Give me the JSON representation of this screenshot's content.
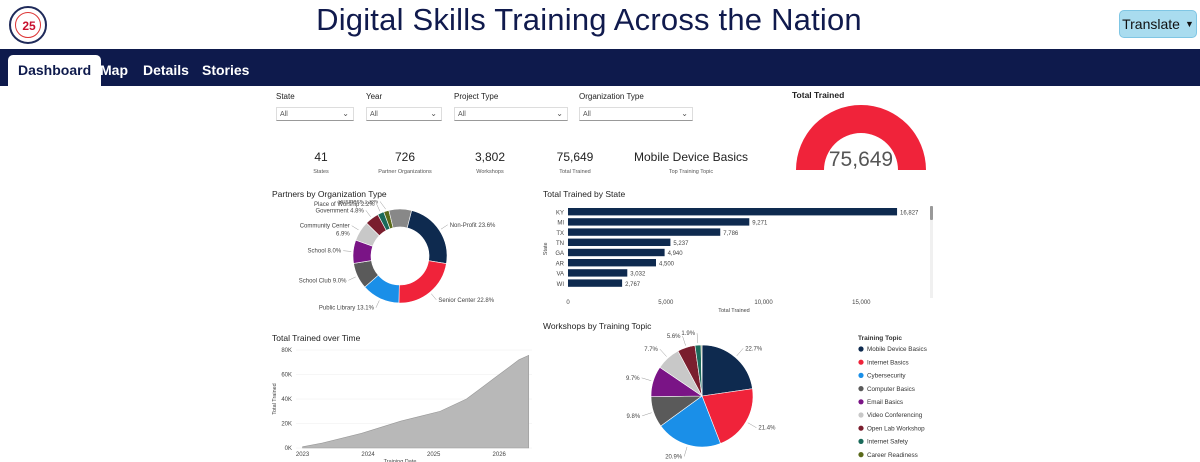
{
  "header": {
    "title": "Digital Skills Training Across the Nation",
    "logo_text": "25",
    "translate_label": "Translate"
  },
  "nav": {
    "tabs": [
      {
        "label": "Dashboard",
        "active": true
      },
      {
        "label": "Map"
      },
      {
        "label": "Details"
      },
      {
        "label": "Stories"
      }
    ]
  },
  "filters": [
    {
      "label": "State",
      "value": "All"
    },
    {
      "label": "Year",
      "value": "All"
    },
    {
      "label": "Project Type",
      "value": "All"
    },
    {
      "label": "Organization Type",
      "value": "All"
    }
  ],
  "kpis": [
    {
      "value": "41",
      "label": "States"
    },
    {
      "value": "726",
      "label": "Partner Organizations"
    },
    {
      "value": "3,802",
      "label": "Workshops"
    },
    {
      "value": "75,649",
      "label": "Total Trained"
    },
    {
      "value": "Mobile Device Basics",
      "label": "Top Training Topic"
    }
  ],
  "gauge": {
    "title": "Total Trained",
    "value_text": "75,649",
    "fraction": 1.0,
    "color": "#f0233a"
  },
  "chart_data": [
    {
      "type": "pie",
      "title": "Partners by Organization Type",
      "categories": [
        "Non-Profit",
        "Senior Center",
        "Public Library",
        "School Club",
        "School",
        "Community Center",
        "Government",
        "Place of Worship",
        "Business",
        "Other"
      ],
      "values": [
        23.6,
        22.8,
        13.1,
        9.0,
        8.0,
        6.9,
        4.8,
        2.2,
        1.8,
        7.8
      ],
      "labels": [
        "Non-Profit 23.6%",
        "Senior Center 22.8%",
        "Public Library 13.1%",
        "School Club 9.0%",
        "School 8.0%",
        "Community Center",
        "Government 4.8%",
        "Place of Worship 2.2%",
        "Business 1.8%",
        ""
      ],
      "extra_label": "6.9%",
      "colors": [
        "#0e2a4f",
        "#f0233a",
        "#1a8fe8",
        "#5a5a5a",
        "#7a1486",
        "#c8c8c8",
        "#7a1e2e",
        "#1a6a5a",
        "#5a6a1a",
        "#888888"
      ]
    },
    {
      "type": "bar",
      "title": "Total Trained by State",
      "categories": [
        "KY",
        "MI",
        "TX",
        "TN",
        "GA",
        "AR",
        "VA",
        "WI"
      ],
      "values": [
        16827,
        9271,
        7786,
        5237,
        4940,
        4500,
        3032,
        2767
      ],
      "value_labels": [
        "16,827",
        "9,271",
        "7,786",
        "5,237",
        "4,940",
        "4,500",
        "3,032",
        "2,767"
      ],
      "xlabel": "Total Trained",
      "ylabel": "State",
      "xticks": [
        "0",
        "5,000",
        "10,000",
        "15,000"
      ],
      "xlim": [
        0,
        18000
      ],
      "color": "#0e2a4f"
    },
    {
      "type": "area",
      "title": "Total Trained over Time",
      "xlabel": "Training Date",
      "ylabel": "Total Trained",
      "xticks": [
        "2023",
        "2024",
        "2025",
        "2026"
      ],
      "yticks": [
        "0K",
        "20K",
        "40K",
        "60K",
        "80K"
      ],
      "ylim": [
        0,
        80000
      ],
      "x": [
        2023.0,
        2023.3,
        2023.6,
        2023.9,
        2024.2,
        2024.5,
        2024.8,
        2025.1,
        2025.3,
        2025.5,
        2025.7,
        2025.9,
        2026.1,
        2026.3,
        2026.45
      ],
      "y": [
        1000,
        4000,
        8000,
        12000,
        17000,
        22000,
        26000,
        30000,
        35000,
        40000,
        48000,
        56000,
        64000,
        72000,
        75649
      ],
      "color": "#b8b8b8"
    },
    {
      "type": "pie",
      "title": "Workshops by Training Topic",
      "legend_title": "Training Topic",
      "categories": [
        "Mobile Device Basics",
        "Internet Basics",
        "Cybersecurity",
        "Computer Basics",
        "Email Basics",
        "Video Conferencing",
        "Open Lab Workshop",
        "Internet Safety",
        "Career Readiness"
      ],
      "values": [
        22.7,
        21.4,
        20.9,
        9.8,
        9.7,
        7.7,
        5.6,
        1.9,
        0.3
      ],
      "labels": [
        "22.7%",
        "21.4%",
        "20.9%",
        "9.8%",
        "9.7%",
        "7.7%",
        "5.6%",
        "1.9%",
        ""
      ],
      "colors": [
        "#0e2a4f",
        "#f0233a",
        "#1a8fe8",
        "#5a5a5a",
        "#7a1486",
        "#c8c8c8",
        "#7a1e2e",
        "#1a6a5a",
        "#5a6a1a"
      ]
    }
  ]
}
